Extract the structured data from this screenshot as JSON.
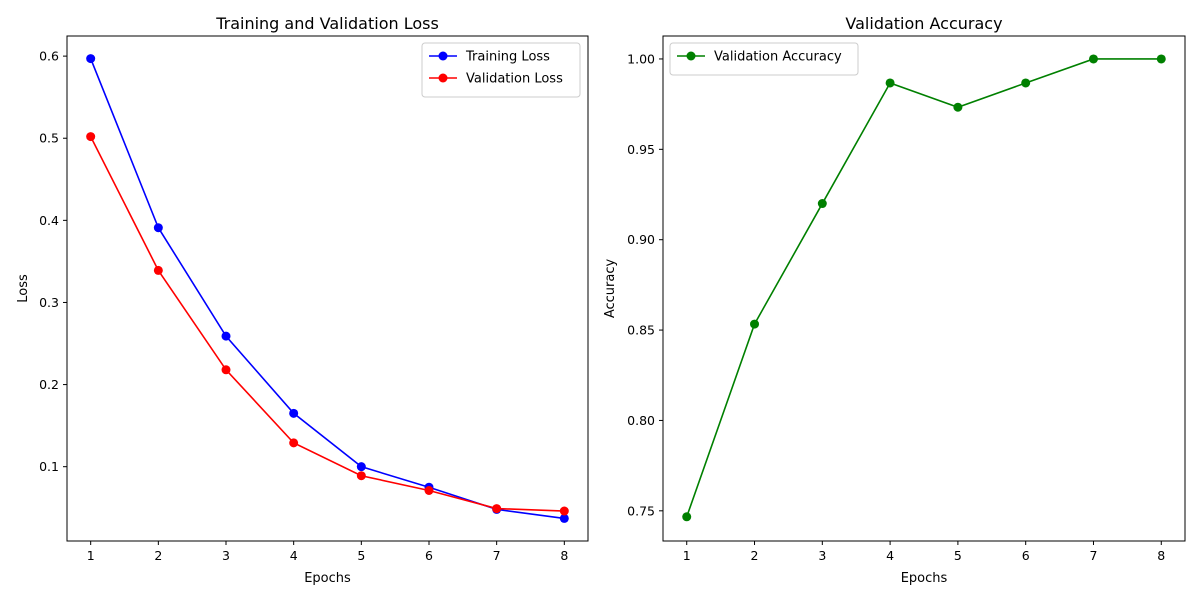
{
  "chart_data": [
    {
      "type": "line",
      "title": "Training and Validation Loss",
      "xlabel": "Epochs",
      "ylabel": "Loss",
      "x": [
        1,
        2,
        3,
        4,
        5,
        6,
        7,
        8
      ],
      "xticks": [
        1,
        2,
        3,
        4,
        5,
        6,
        7,
        8
      ],
      "xlim": [
        0.65,
        8.35
      ],
      "yticks": [
        0.1,
        0.2,
        0.3,
        0.4,
        0.5,
        0.6
      ],
      "ytick_labels": [
        "0.1",
        "0.2",
        "0.3",
        "0.4",
        "0.5",
        "0.6"
      ],
      "ylim": [
        0.0095,
        0.6245
      ],
      "grid": false,
      "legend_position": "top-right",
      "series": [
        {
          "name": "Training Loss",
          "color": "#0000ff",
          "marker": "circle",
          "values": [
            0.597,
            0.391,
            0.259,
            0.165,
            0.1,
            0.075,
            0.048,
            0.037
          ]
        },
        {
          "name": "Validation Loss",
          "color": "#ff0000",
          "marker": "circle",
          "values": [
            0.502,
            0.339,
            0.218,
            0.129,
            0.089,
            0.071,
            0.049,
            0.046
          ]
        }
      ]
    },
    {
      "type": "line",
      "title": "Validation Accuracy",
      "xlabel": "Epochs",
      "ylabel": "Accuracy",
      "x": [
        1,
        2,
        3,
        4,
        5,
        6,
        7,
        8
      ],
      "xticks": [
        1,
        2,
        3,
        4,
        5,
        6,
        7,
        8
      ],
      "xlim": [
        0.65,
        8.35
      ],
      "yticks": [
        0.75,
        0.8,
        0.85,
        0.9,
        0.95,
        1.0
      ],
      "ytick_labels": [
        "0.75",
        "0.80",
        "0.85",
        "0.90",
        "0.95",
        "1.00"
      ],
      "ylim": [
        0.7333,
        1.0127
      ],
      "grid": false,
      "legend_position": "top-left",
      "series": [
        {
          "name": "Validation Accuracy",
          "color": "#008000",
          "marker": "circle",
          "values": [
            0.7467,
            0.8533,
            0.92,
            0.9867,
            0.9733,
            0.9867,
            1.0,
            1.0
          ]
        }
      ]
    }
  ]
}
